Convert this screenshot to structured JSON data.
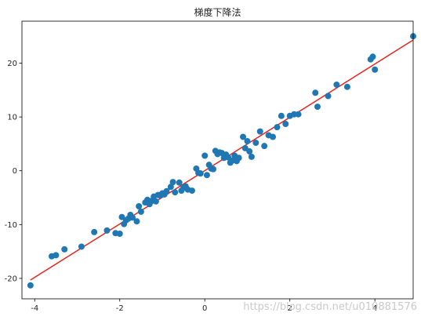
{
  "chart_data": {
    "type": "scatter",
    "title": "梯度下降法",
    "xlabel": "",
    "ylabel": "",
    "xlim": [
      -4.3,
      4.9
    ],
    "ylim": [
      -23.8,
      27.8
    ],
    "xticks": [
      -4,
      -2,
      0,
      2,
      4
    ],
    "yticks": [
      -20,
      -10,
      0,
      10,
      20
    ],
    "grid": false,
    "legend": "none",
    "series": [
      {
        "kind": "scatter",
        "color": "#1f77b4",
        "x": [
          -4.1,
          -3.6,
          -3.5,
          -3.3,
          -2.9,
          -2.6,
          -2.3,
          -2.1,
          -2.0,
          -1.95,
          -1.9,
          -1.85,
          -1.8,
          -1.75,
          -1.7,
          -1.6,
          -1.55,
          -1.5,
          -1.4,
          -1.35,
          -1.3,
          -1.25,
          -1.2,
          -1.15,
          -1.1,
          -1.05,
          -1.0,
          -0.95,
          -0.9,
          -0.8,
          -0.75,
          -0.7,
          -0.6,
          -0.55,
          -0.5,
          -0.45,
          -0.4,
          -0.3,
          -0.2,
          -0.15,
          -0.1,
          0.0,
          0.05,
          0.1,
          0.15,
          0.2,
          0.25,
          0.3,
          0.35,
          0.4,
          0.45,
          0.5,
          0.55,
          0.6,
          0.65,
          0.7,
          0.75,
          0.8,
          0.9,
          0.95,
          1.0,
          1.05,
          1.1,
          1.2,
          1.3,
          1.4,
          1.5,
          1.6,
          1.7,
          1.8,
          1.9,
          2.0,
          2.1,
          2.2,
          2.6,
          2.65,
          2.9,
          3.1,
          3.35,
          3.9,
          3.95,
          4.0,
          4.9
        ],
        "y": [
          -21.3,
          -15.9,
          -15.7,
          -14.6,
          -14.1,
          -11.4,
          -11.1,
          -11.6,
          -11.7,
          -8.6,
          -9.9,
          -9.2,
          -8.9,
          -8.2,
          -8.7,
          -9.4,
          -6.6,
          -7.6,
          -5.9,
          -5.4,
          -6.2,
          -5.6,
          -4.8,
          -5.7,
          -4.5,
          -4.6,
          -4.2,
          -4.4,
          -3.8,
          -3.0,
          -2.1,
          -4.0,
          -2.2,
          -3.7,
          -3.1,
          -2.9,
          -3.5,
          -3.7,
          0.4,
          -0.4,
          -0.5,
          2.8,
          -0.8,
          1.1,
          0.4,
          0.3,
          3.7,
          3.1,
          3.4,
          3.3,
          2.4,
          3.0,
          2.5,
          1.5,
          1.9,
          2.8,
          1.8,
          2.4,
          6.3,
          4.2,
          5.5,
          3.6,
          2.6,
          5.2,
          7.3,
          4.6,
          6.6,
          6.3,
          8.1,
          10.2,
          8.7,
          10.2,
          10.5,
          10.5,
          14.5,
          11.9,
          13.9,
          16.0,
          15.6,
          20.7,
          21.2,
          18.8,
          25.0
        ]
      },
      {
        "kind": "line",
        "color": "#e8241c",
        "x": [
          -4.1,
          4.9
        ],
        "y": [
          -20.3,
          24.3
        ]
      }
    ]
  },
  "watermark": {
    "text": "https://blog.csdn.net/u010881576"
  }
}
